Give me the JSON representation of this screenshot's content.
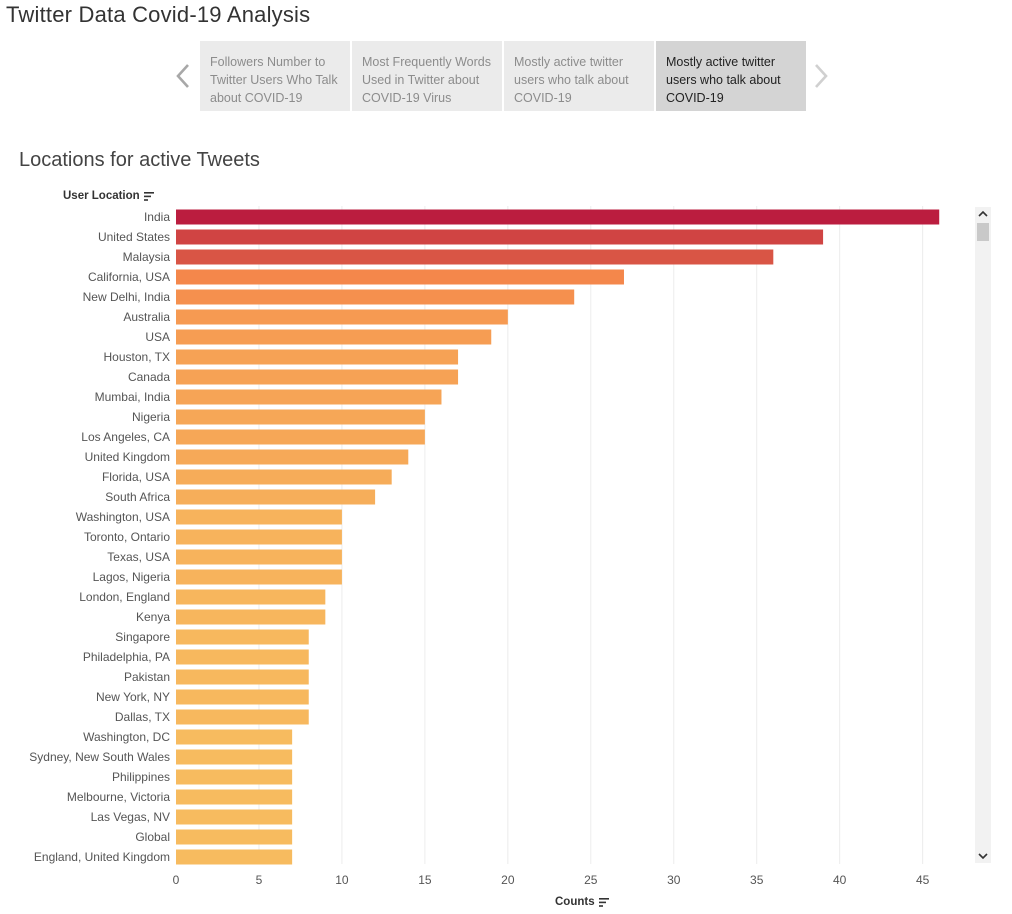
{
  "app": {
    "title": "Twitter Data Covid-19 Analysis"
  },
  "story": {
    "tabs": [
      {
        "label": "Followers Number to Twitter Users Who Talk about COVID-19",
        "active": false
      },
      {
        "label": "Most Frequently Words Used in Twitter about COVID-19 Virus",
        "active": false
      },
      {
        "label": "Mostly active twitter users who talk about COVID-19",
        "active": false
      },
      {
        "label": "Mostly active twitter users who talk about COVID-19",
        "active": true
      }
    ],
    "prev_icon": "chevron-left-icon",
    "next_icon": "chevron-right-icon"
  },
  "sheet": {
    "title": "Locations for active Tweets",
    "row_field": "User Location",
    "sort_icon": "sort-descending-icon"
  },
  "chart_data": {
    "type": "bar",
    "orientation": "horizontal",
    "categories": [
      "India",
      "United States",
      "Malaysia",
      "California, USA",
      "New Delhi, India",
      "Australia",
      "USA",
      "Houston, TX",
      "Canada",
      "Mumbai, India",
      "Nigeria",
      "Los Angeles, CA",
      "United Kingdom",
      "Florida, USA",
      "South Africa",
      "Washington, USA",
      "Toronto, Ontario",
      "Texas, USA",
      "Lagos, Nigeria",
      "London, England",
      "Kenya",
      "Singapore",
      "Philadelphia, PA",
      "Pakistan",
      "New York, NY",
      "Dallas, TX",
      "Washington, DC",
      "Sydney, New South Wales",
      "Philippines",
      "Melbourne, Victoria",
      "Las Vegas, NV",
      "Global",
      "England, United Kingdom"
    ],
    "values": [
      46,
      39,
      36,
      27,
      24,
      20,
      19,
      17,
      17,
      16,
      15,
      15,
      14,
      13,
      12,
      10,
      10,
      10,
      10,
      9,
      9,
      8,
      8,
      8,
      8,
      8,
      7,
      7,
      7,
      7,
      7,
      7,
      7
    ],
    "title": "Locations for active Tweets",
    "xlabel": "Counts",
    "ylabel": "User Location",
    "xlim": [
      0,
      49
    ],
    "xticks": [
      0,
      5,
      10,
      15,
      20,
      25,
      30,
      35,
      40,
      45
    ],
    "grid": true,
    "color_scale": {
      "low": "#f7bb5f",
      "mid": "#f58a4b",
      "high": "#bb1d3f"
    }
  }
}
